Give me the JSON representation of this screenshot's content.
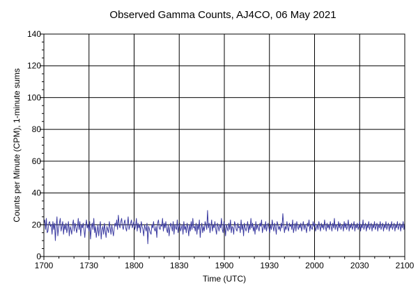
{
  "chart_data": {
    "type": "line",
    "title": "Observed Gamma Counts, AJ4CO, 06 May 2021",
    "xlabel": "Time (UTC)",
    "ylabel": "Counts per Minute (CPM), 1-minute sums",
    "xlim": [
      "1700",
      "2100"
    ],
    "ylim": [
      0,
      140
    ],
    "x_ticks": [
      "1700",
      "1730",
      "1800",
      "1830",
      "1900",
      "1930",
      "2000",
      "2030",
      "2100"
    ],
    "y_ticks": [
      0,
      20,
      40,
      60,
      80,
      100,
      120,
      140
    ],
    "grid": true,
    "series_color": "#3a3aa0",
    "series": [
      {
        "x_start": "1700",
        "x_end": "2100",
        "sampling": "1 minute",
        "values": [
          21,
          23,
          17,
          24,
          15,
          16,
          21,
          22,
          19,
          20,
          14,
          22,
          17,
          21,
          10,
          19,
          25,
          13,
          18,
          21,
          24,
          16,
          19,
          22,
          14,
          20,
          17,
          21,
          15,
          18,
          22,
          13,
          19,
          17,
          14,
          20,
          23,
          16,
          21,
          19,
          15,
          18,
          24,
          17,
          22,
          13,
          20,
          18,
          21,
          17,
          12,
          19,
          23,
          18,
          20,
          16,
          22,
          11,
          18,
          21,
          17,
          24,
          15,
          19,
          12,
          16,
          20,
          13,
          18,
          22,
          11,
          17,
          19,
          14,
          21,
          16,
          12,
          19,
          17,
          15,
          22,
          18,
          14,
          20,
          16,
          13,
          18,
          21,
          19,
          23,
          17,
          26,
          20,
          18,
          22,
          24,
          19,
          17,
          21,
          23,
          18,
          16,
          20,
          25,
          17,
          19,
          21,
          23,
          18,
          20,
          22,
          17,
          19,
          24,
          16,
          21,
          18,
          20,
          15,
          22,
          19,
          17,
          13,
          20,
          18,
          16,
          21,
          8,
          19,
          17,
          15,
          14,
          20,
          18,
          22,
          17,
          16,
          19,
          12,
          21,
          23,
          18,
          17,
          20,
          19,
          24,
          16,
          21,
          18,
          22,
          17,
          15,
          20,
          13,
          18,
          21,
          19,
          16,
          22,
          14,
          20,
          18,
          17,
          23,
          15,
          19,
          21,
          16,
          18,
          20,
          14,
          22,
          17,
          19,
          15,
          21,
          18,
          13,
          20,
          16,
          22,
          17,
          24,
          18,
          19,
          16,
          21,
          14,
          20,
          17,
          23,
          12,
          18,
          21,
          15,
          19,
          16,
          22,
          20,
          17,
          29,
          18,
          21,
          15,
          19,
          23,
          16,
          20,
          18,
          22,
          17,
          14,
          21,
          19,
          16,
          20,
          18,
          24,
          17,
          15,
          22,
          19,
          13,
          20,
          18,
          16,
          21,
          17,
          23,
          15,
          19,
          18,
          14,
          22,
          20,
          17,
          16,
          21,
          18,
          19,
          15,
          23,
          17,
          20,
          13,
          21,
          18,
          16,
          19,
          22,
          15,
          20,
          17,
          24,
          18,
          21,
          16,
          19,
          14,
          22,
          17,
          20,
          18,
          16,
          21,
          19,
          23,
          15,
          18,
          20,
          17,
          22,
          16,
          19,
          21,
          18,
          15,
          20,
          17,
          23,
          19,
          16,
          21,
          18,
          14,
          22,
          20,
          17,
          19,
          16,
          21,
          18,
          27,
          20,
          15,
          19,
          17,
          22,
          18,
          16,
          21,
          19,
          20,
          17,
          23,
          15,
          18,
          21,
          16,
          22,
          19,
          17,
          20,
          18,
          21,
          16,
          19,
          22,
          17,
          20,
          18,
          15,
          21,
          19,
          23,
          16,
          20,
          18,
          17,
          22,
          19,
          21,
          16,
          18,
          20,
          17,
          22,
          19,
          16,
          21,
          18,
          20,
          17,
          23,
          19,
          16,
          21,
          18,
          20,
          17,
          22,
          19,
          16,
          21,
          18,
          24,
          17,
          20,
          19,
          16,
          22,
          18,
          21,
          17,
          19,
          20,
          16,
          22,
          18,
          21,
          17,
          19,
          23,
          16,
          20,
          18,
          21,
          17,
          19,
          22,
          16,
          20,
          18,
          21,
          17,
          19,
          22,
          16,
          20,
          18,
          23,
          17,
          19,
          21,
          16,
          20,
          18,
          22,
          17,
          19,
          21,
          16,
          20,
          18,
          22,
          17,
          19,
          21,
          16,
          20,
          18,
          22,
          17,
          19,
          21,
          16,
          20,
          18,
          22,
          17,
          19,
          21,
          16,
          20,
          18,
          22,
          17,
          19,
          21,
          16,
          20,
          18,
          22,
          17,
          19,
          21,
          16,
          20,
          18,
          22,
          17,
          21
        ]
      }
    ]
  }
}
